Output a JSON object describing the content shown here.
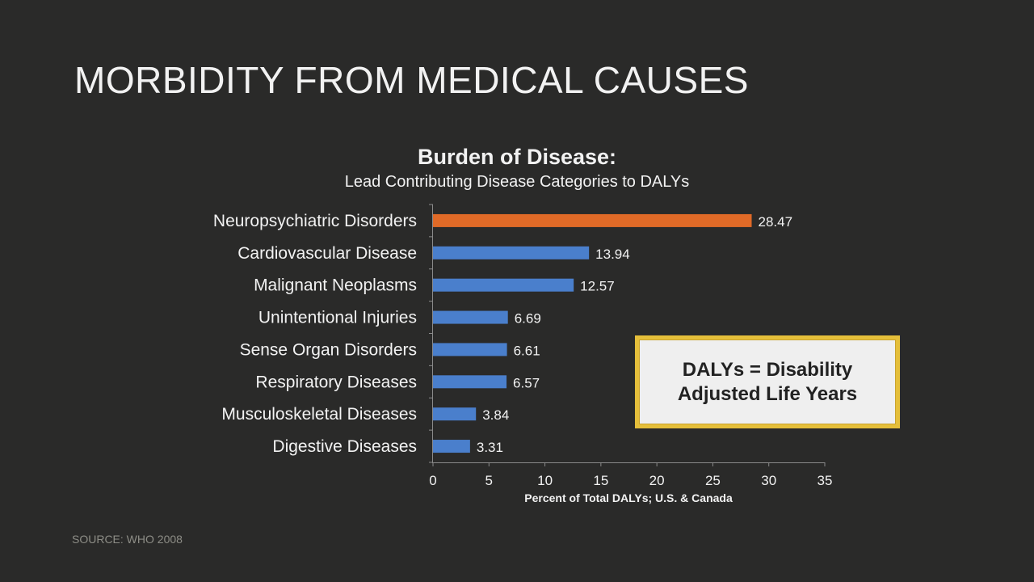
{
  "slide": {
    "title": "MORBIDITY FROM MEDICAL CAUSES",
    "source": "SOURCE: WHO 2008",
    "callout": "DALYs = Disability Adjusted Life Years"
  },
  "colors": {
    "background": "#2a2a29",
    "highlight_bar": "#e06a27",
    "bar": "#4a7fcc",
    "callout_border": "#e5bf3a",
    "callout_fill": "#efefef"
  },
  "chart_data": {
    "type": "bar",
    "orientation": "horizontal",
    "title": "Burden of Disease:",
    "subtitle": "Lead Contributing Disease Categories to DALYs",
    "xlabel": "Percent of Total DALYs; U.S. & Canada",
    "ylabel": "",
    "xlim": [
      0,
      35
    ],
    "xticks": [
      0,
      5,
      10,
      15,
      20,
      25,
      30,
      35
    ],
    "grid": false,
    "categories": [
      "Neuropsychiatric Disorders",
      "Cardiovascular Disease",
      "Malignant Neoplasms",
      "Unintentional Injuries",
      "Sense Organ Disorders",
      "Respiratory Diseases",
      "Musculoskeletal Diseases",
      "Digestive Diseases"
    ],
    "values": [
      28.47,
      13.94,
      12.57,
      6.69,
      6.61,
      6.57,
      3.84,
      3.31
    ],
    "value_labels": [
      "28.47",
      "13.94",
      "12.57",
      "6.69",
      "6.61",
      "6.57",
      "3.84",
      "3.31"
    ],
    "highlighted_category": "Neuropsychiatric Disorders"
  }
}
